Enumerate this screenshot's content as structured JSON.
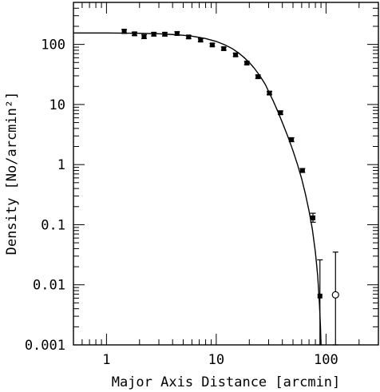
{
  "chart_data": {
    "type": "scatter",
    "title": "",
    "xlabel": "Major Axis Distance [arcmin]",
    "ylabel": "Density [No/arcmin²]",
    "x_scale": "log",
    "y_scale": "log",
    "xlim": [
      0.5,
      300
    ],
    "ylim": [
      0.001,
      500
    ],
    "x_ticks": [
      {
        "value": 1,
        "label": "1"
      },
      {
        "value": 10,
        "label": "10"
      },
      {
        "value": 100,
        "label": "100"
      }
    ],
    "y_ticks": [
      {
        "value": 0.001,
        "label": "0.001"
      },
      {
        "value": 0.01,
        "label": "0.01"
      },
      {
        "value": 0.1,
        "label": "0.1"
      },
      {
        "value": 1,
        "label": "1"
      },
      {
        "value": 10,
        "label": "10"
      },
      {
        "value": 100,
        "label": "100"
      }
    ],
    "grid": false,
    "series": [
      {
        "kind": "points-with-errorbars",
        "marker": "filled-square",
        "points": [
          {
            "x": 1.45,
            "y": 165,
            "lo": 152,
            "hi": 178
          },
          {
            "x": 1.8,
            "y": 150,
            "lo": 140,
            "hi": 160
          },
          {
            "x": 2.2,
            "y": 135,
            "lo": 125,
            "hi": 145
          },
          {
            "x": 2.7,
            "y": 148,
            "lo": 138,
            "hi": 158
          },
          {
            "x": 3.4,
            "y": 148,
            "lo": 138,
            "hi": 158
          },
          {
            "x": 4.4,
            "y": 152,
            "lo": 142,
            "hi": 162
          },
          {
            "x": 5.6,
            "y": 133,
            "lo": 125,
            "hi": 141
          },
          {
            "x": 7.2,
            "y": 118,
            "lo": 111,
            "hi": 125
          },
          {
            "x": 9.2,
            "y": 98,
            "lo": 93,
            "hi": 104
          },
          {
            "x": 11.7,
            "y": 85,
            "lo": 80,
            "hi": 90
          },
          {
            "x": 15,
            "y": 67,
            "lo": 63,
            "hi": 71
          },
          {
            "x": 19,
            "y": 49,
            "lo": 46,
            "hi": 52
          },
          {
            "x": 24,
            "y": 29,
            "lo": 27,
            "hi": 31
          },
          {
            "x": 30.5,
            "y": 15.5,
            "lo": 14.5,
            "hi": 16.5
          },
          {
            "x": 38.5,
            "y": 7.3,
            "lo": 6.8,
            "hi": 7.8
          },
          {
            "x": 48.5,
            "y": 2.6,
            "lo": 2.4,
            "hi": 2.8
          },
          {
            "x": 61,
            "y": 0.8,
            "lo": 0.74,
            "hi": 0.86
          },
          {
            "x": 76,
            "y": 0.13,
            "lo": 0.11,
            "hi": 0.155
          },
          {
            "x": 88,
            "y": 0.0065,
            "lo": 0.001,
            "hi": 0.026
          }
        ]
      },
      {
        "kind": "points-with-errorbars",
        "marker": "open-circle",
        "points": [
          {
            "x": 122,
            "y": 0.0068,
            "lo": 0.001,
            "hi": 0.035
          }
        ]
      },
      {
        "kind": "curve",
        "points": [
          [
            0.5,
            155
          ],
          [
            1,
            155
          ],
          [
            2,
            153
          ],
          [
            3,
            150
          ],
          [
            4,
            146
          ],
          [
            5,
            142
          ],
          [
            6,
            137
          ],
          [
            7,
            131
          ],
          [
            8,
            125
          ],
          [
            10,
            112
          ],
          [
            12,
            98
          ],
          [
            14,
            85
          ],
          [
            16,
            72
          ],
          [
            18,
            60
          ],
          [
            20,
            50
          ],
          [
            22,
            41
          ],
          [
            25,
            30
          ],
          [
            28,
            21.5
          ],
          [
            30,
            16.5
          ],
          [
            33,
            11.5
          ],
          [
            36,
            8
          ],
          [
            40,
            5
          ],
          [
            45,
            2.9
          ],
          [
            50,
            1.7
          ],
          [
            55,
            1
          ],
          [
            60,
            0.58
          ],
          [
            65,
            0.32
          ],
          [
            70,
            0.17
          ],
          [
            75,
            0.085
          ],
          [
            80,
            0.035
          ],
          [
            84,
            0.014
          ],
          [
            87,
            0.005
          ],
          [
            89,
            0.002
          ],
          [
            90,
            0.001
          ]
        ]
      }
    ]
  }
}
